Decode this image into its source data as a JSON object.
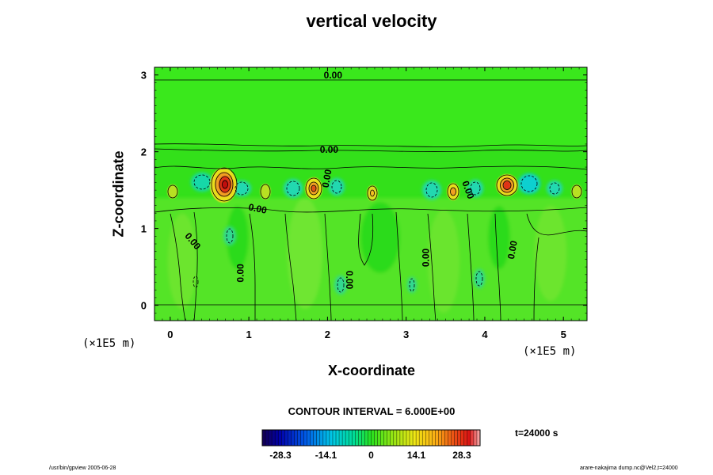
{
  "title": "vertical velocity",
  "xlabel": "X-coordinate",
  "ylabel": "Z-coordinate",
  "x_unit": "(×1E5 m)",
  "y_unit": "(×1E5 m)",
  "contour_interval": "CONTOUR INTERVAL = 6.000E+00",
  "time_label": "t=24000 s",
  "footer_left": "/usr/bin/gpview 2005-06-28",
  "footer_right": "arare-nakajima  dump.nc@Vel2,t=24000",
  "colors": {
    "background": "#33e01a",
    "positive": "#e60000",
    "negative": "#00c8e6"
  },
  "chart_data": {
    "type": "heatmap",
    "title": "vertical velocity",
    "xlabel": "X-coordinate",
    "ylabel": "Z-coordinate",
    "xlim": [
      -0.2,
      5.3
    ],
    "ylim": [
      -0.2,
      3.1
    ],
    "x_ticks": [
      "0",
      "1",
      "2",
      "3",
      "4",
      "5"
    ],
    "y_ticks": [
      "0",
      "1",
      "2",
      "3"
    ],
    "contour_labels": [
      {
        "text": "0.00",
        "x": 2.07,
        "z": 2.99,
        "angle": 0
      },
      {
        "text": "0.00",
        "x": 2.02,
        "z": 2.02,
        "angle": 0
      },
      {
        "text": "0.00",
        "x": 2.0,
        "z": 1.65,
        "angle": -80
      },
      {
        "text": "0.00",
        "x": 1.11,
        "z": 1.25,
        "angle": 12
      },
      {
        "text": "0.00",
        "x": 3.78,
        "z": 1.5,
        "angle": 70
      },
      {
        "text": "0.00",
        "x": 0.28,
        "z": 0.83,
        "angle": 50
      },
      {
        "text": "0.00",
        "x": 0.9,
        "z": 0.42,
        "angle": -90
      },
      {
        "text": "0.00",
        "x": 2.27,
        "z": 0.33,
        "angle": 90
      },
      {
        "text": "0.00",
        "x": 3.26,
        "z": 0.62,
        "angle": -90
      },
      {
        "text": "0.00",
        "x": 4.36,
        "z": 0.72,
        "angle": -80
      }
    ],
    "colorbar": {
      "ticks": [
        "-28.3",
        "-14.1",
        "0",
        "14.1",
        "28.3"
      ],
      "range": [
        -34,
        34
      ]
    }
  }
}
